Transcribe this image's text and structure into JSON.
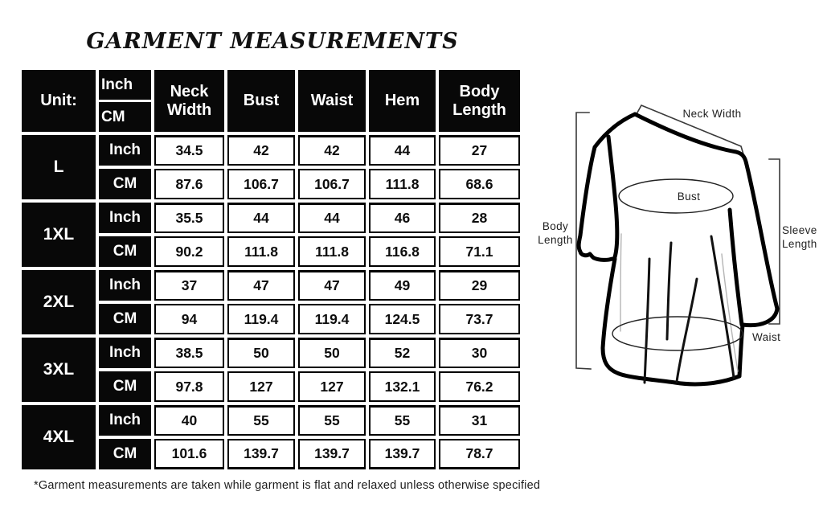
{
  "title": "GARMENT MEASUREMENTS",
  "footnote": "*Garment measurements are taken while garment is flat and relaxed unless otherwise specified",
  "colors": {
    "table_cell_bg": "#080808",
    "table_cell_text": "#ffffff",
    "table_border": "#000000",
    "page_bg": "#ffffff"
  },
  "table": {
    "unit_header": "Unit:",
    "unit_rows": [
      "Inch",
      "CM"
    ],
    "columns": [
      "Neck Width",
      "Bust",
      "Waist",
      "Hem",
      "Body Length"
    ],
    "sizes": [
      {
        "label": "L",
        "inch": [
          "34.5",
          "42",
          "42",
          "44",
          "27"
        ],
        "cm": [
          "87.6",
          "106.7",
          "106.7",
          "111.8",
          "68.6"
        ]
      },
      {
        "label": "1XL",
        "inch": [
          "35.5",
          "44",
          "44",
          "46",
          "28"
        ],
        "cm": [
          "90.2",
          "111.8",
          "111.8",
          "116.8",
          "71.1"
        ]
      },
      {
        "label": "2XL",
        "inch": [
          "37",
          "47",
          "47",
          "49",
          "29"
        ],
        "cm": [
          "94",
          "119.4",
          "119.4",
          "124.5",
          "73.7"
        ]
      },
      {
        "label": "3XL",
        "inch": [
          "38.5",
          "50",
          "50",
          "52",
          "30"
        ],
        "cm": [
          "97.8",
          "127",
          "127",
          "132.1",
          "76.2"
        ]
      },
      {
        "label": "4XL",
        "inch": [
          "40",
          "55",
          "55",
          "55",
          "31"
        ],
        "cm": [
          "101.6",
          "139.7",
          "139.7",
          "139.7",
          "78.7"
        ]
      }
    ]
  },
  "diagram": {
    "labels": {
      "neck_width": "Neck Width",
      "bust": "Bust",
      "waist": "Waist",
      "body_length": [
        "Body",
        "Length"
      ],
      "sleeve_length": [
        "Sleeve",
        "Length"
      ]
    }
  }
}
